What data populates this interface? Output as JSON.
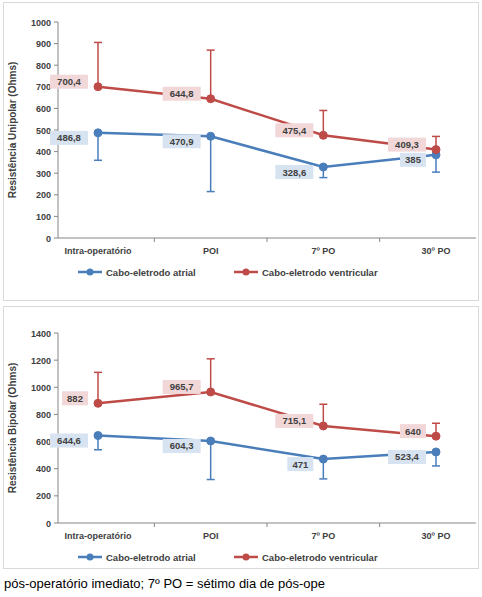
{
  "chart_data": [
    {
      "type": "line",
      "y_label": "Resistência Unipolar (Ohms)",
      "categories": [
        "Intra-operatório",
        "POI",
        "7º PO",
        "30º PO"
      ],
      "series": [
        {
          "name": "Cabo-eletrodo atrial",
          "color": "#4a7ebb",
          "marker": "circle",
          "values": [
            486.8,
            470.9,
            328.6,
            385
          ],
          "value_labels": [
            "486,8",
            "470,9",
            "328,6",
            "385"
          ],
          "error_minus": [
            127,
            256,
            49,
            80
          ]
        },
        {
          "name": "Cabo-eletrodo ventricular",
          "color": "#be4b48",
          "marker": "circle",
          "values": [
            700.4,
            644.8,
            475.4,
            409.3
          ],
          "value_labels": [
            "700,4",
            "644,8",
            "475,4",
            "409,3"
          ],
          "error_plus": [
            205,
            225,
            115,
            61
          ]
        }
      ],
      "ylim": [
        0,
        1000
      ],
      "yticks": [
        0,
        100,
        200,
        300,
        400,
        500,
        600,
        700,
        800,
        900,
        1000
      ],
      "grid": false,
      "data_labels": true,
      "legend": "bottom"
    },
    {
      "type": "line",
      "y_label": "Resistência Bipolar (Ohms)",
      "categories": [
        "Intra-operatório",
        "POI",
        "7º PO",
        "30º PO"
      ],
      "series": [
        {
          "name": "Cabo-eletrodo atrial",
          "color": "#4a7ebb",
          "marker": "circle",
          "values": [
            644.6,
            604.3,
            471,
            523.4
          ],
          "value_labels": [
            "644,6",
            "604,3",
            "471",
            "523,4"
          ],
          "error_minus": [
            105,
            284,
            146,
            103
          ]
        },
        {
          "name": "Cabo-eletrodo ventricular",
          "color": "#be4b48",
          "marker": "circle",
          "values": [
            882,
            965.7,
            715.1,
            640
          ],
          "value_labels": [
            "882",
            "965,7",
            "715,1",
            "640"
          ],
          "error_plus": [
            228,
            244,
            160,
            95
          ]
        }
      ],
      "ylim": [
        0,
        1400
      ],
      "yticks": [
        0,
        200,
        400,
        600,
        800,
        1000,
        1200,
        1400
      ],
      "grid": false,
      "data_labels": true,
      "legend": "bottom"
    }
  ],
  "caption": "pós-operatório imediato; 7º PO = sétimo dia de pós-ope"
}
